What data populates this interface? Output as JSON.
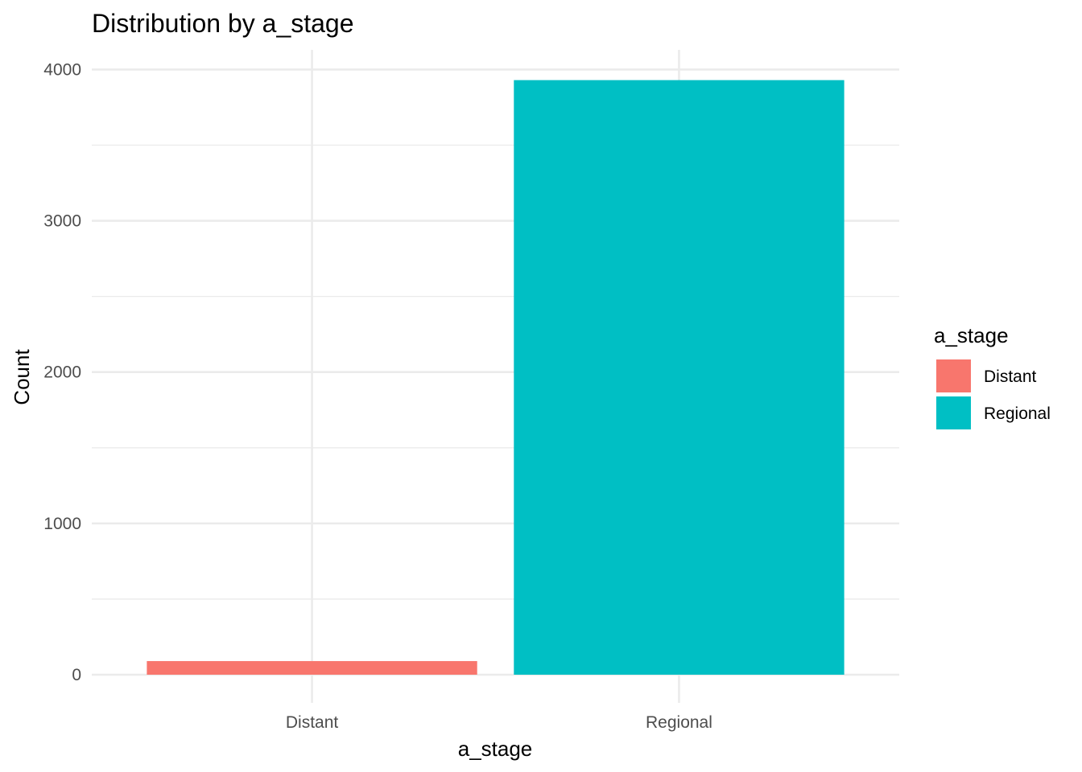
{
  "chart_data": {
    "type": "bar",
    "title": "Distribution by a_stage",
    "xlabel": "a_stage",
    "ylabel": "Count",
    "categories": [
      "Distant",
      "Regional"
    ],
    "values": [
      90,
      3930
    ],
    "colors": [
      "#F8766D",
      "#00BFC4"
    ],
    "ylim": [
      0,
      4130
    ],
    "yticks": [
      0,
      1000,
      2000,
      3000,
      4000
    ],
    "grid": true,
    "legend": {
      "title": "a_stage",
      "position": "right",
      "entries": [
        "Distant",
        "Regional"
      ]
    }
  }
}
